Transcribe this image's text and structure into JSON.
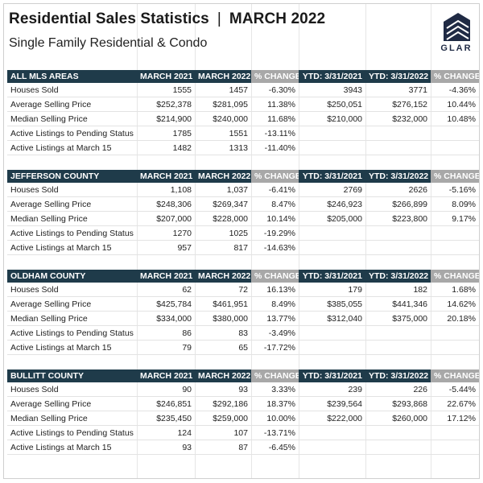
{
  "header": {
    "title": "Residential Sales Statistics",
    "separator": "|",
    "period": "MARCH 2022",
    "subtitle": "Single Family Residential & Condo",
    "logo_text": "GLAR"
  },
  "colors": {
    "header_bg": "#1f3b4a",
    "change_bg": "#a8a8a8",
    "logo": "#1f2a44"
  },
  "sections": [
    {
      "headers": [
        "ALL MLS AREAS",
        "MARCH 2021",
        "MARCH 2022",
        "% CHANGE",
        "YTD: 3/31/2021",
        "YTD: 3/31/2022",
        "% CHANGE"
      ],
      "rows": [
        [
          "Houses Sold",
          "1555",
          "1457",
          "-6.30%",
          "3943",
          "3771",
          "-4.36%"
        ],
        [
          "Average Selling Price",
          "$252,378",
          "$281,095",
          "11.38%",
          "$250,051",
          "$276,152",
          "10.44%"
        ],
        [
          "Median Selling Price",
          "$214,900",
          "$240,000",
          "11.68%",
          "$210,000",
          "$232,000",
          "10.48%"
        ],
        [
          "Active Listings to Pending Status",
          "1785",
          "1551",
          "-13.11%",
          "",
          "",
          ""
        ],
        [
          "Active Listings at March 15",
          "1482",
          "1313",
          "-11.40%",
          "",
          "",
          ""
        ]
      ]
    },
    {
      "headers": [
        "JEFFERSON COUNTY",
        "MARCH 2021",
        "MARCH 2022",
        "% CHANGE",
        "YTD: 3/31/2021",
        "YTD: 3/31/2022",
        "% CHANGE"
      ],
      "rows": [
        [
          "Houses Sold",
          "1,108",
          "1,037",
          "-6.41%",
          "2769",
          "2626",
          "-5.16%"
        ],
        [
          "Average Selling Price",
          "$248,306",
          "$269,347",
          "8.47%",
          "$246,923",
          "$266,899",
          "8.09%"
        ],
        [
          "Median Selling Price",
          "$207,000",
          "$228,000",
          "10.14%",
          "$205,000",
          "$223,800",
          "9.17%"
        ],
        [
          "Active Listings to Pending Status",
          "1270",
          "1025",
          "-19.29%",
          "",
          "",
          ""
        ],
        [
          "Active Listings at March 15",
          "957",
          "817",
          "-14.63%",
          "",
          "",
          ""
        ]
      ]
    },
    {
      "headers": [
        "OLDHAM COUNTY",
        "MARCH 2021",
        "MARCH 2022",
        "% CHANGE",
        "YTD: 3/31/2021",
        "YTD: 3/31/2022",
        "% CHANGE"
      ],
      "rows": [
        [
          "Houses Sold",
          "62",
          "72",
          "16.13%",
          "179",
          "182",
          "1.68%"
        ],
        [
          "Average Selling Price",
          "$425,784",
          "$461,951",
          "8.49%",
          "$385,055",
          "$441,346",
          "14.62%"
        ],
        [
          "Median Selling Price",
          "$334,000",
          "$380,000",
          "13.77%",
          "$312,040",
          "$375,000",
          "20.18%"
        ],
        [
          "Active Listings to Pending Status",
          "86",
          "83",
          "-3.49%",
          "",
          "",
          ""
        ],
        [
          "Active Listings at March 15",
          "79",
          "65",
          "-17.72%",
          "",
          "",
          ""
        ]
      ]
    },
    {
      "headers": [
        "BULLITT COUNTY",
        "MARCH 2021",
        "MARCH 2022",
        "% CHANGE",
        "YTD: 3/31/2021",
        "YTD: 3/31/2022",
        "% CHANGE"
      ],
      "rows": [
        [
          "Houses Sold",
          "90",
          "93",
          "3.33%",
          "239",
          "226",
          "-5.44%"
        ],
        [
          "Average Selling Price",
          "$246,851",
          "$292,186",
          "18.37%",
          "$239,564",
          "$293,868",
          "22.67%"
        ],
        [
          "Median Selling Price",
          "$235,450",
          "$259,000",
          "10.00%",
          "$222,000",
          "$260,000",
          "17.12%"
        ],
        [
          "Active Listings to Pending Status",
          "124",
          "107",
          "-13.71%",
          "",
          "",
          ""
        ],
        [
          "Active Listings at March 15",
          "93",
          "87",
          "-6.45%",
          "",
          "",
          ""
        ]
      ]
    }
  ]
}
